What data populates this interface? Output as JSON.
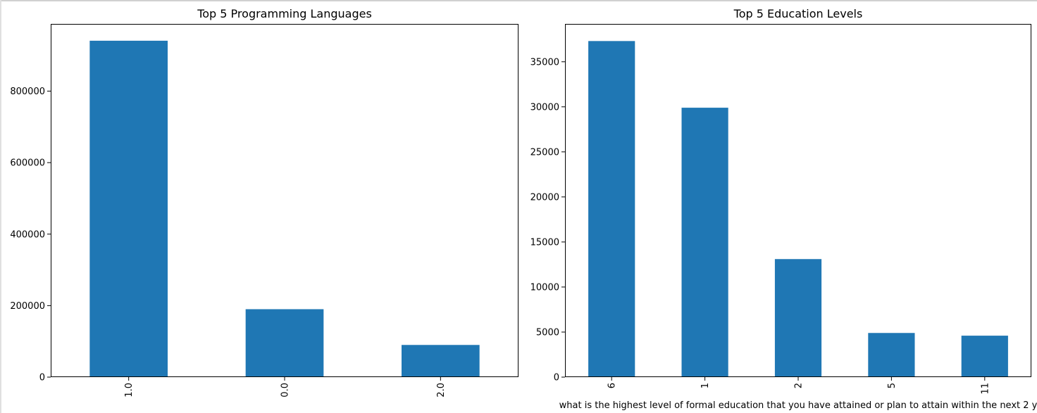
{
  "colors": {
    "bar": "#1f77b4",
    "axis": "#000000",
    "background": "#ffffff"
  },
  "chart_data": [
    {
      "type": "bar",
      "title": "Top 5 Programming Languages",
      "xlabel": "",
      "ylabel": "",
      "categories": [
        "1.0",
        "0.0",
        "2.0"
      ],
      "values": [
        941000,
        190000,
        90000
      ],
      "ylim": [
        0,
        988000
      ],
      "yticks": [
        0,
        200000,
        400000,
        600000,
        800000
      ],
      "ytick_labels": [
        "0",
        "200000",
        "400000",
        "600000",
        "800000"
      ],
      "xtick_rotation": "vertical",
      "grid": false,
      "legend": "none"
    },
    {
      "type": "bar",
      "title": "Top 5 Education Levels",
      "xlabel": "what is the highest level of formal education that you have attained or plan to attain within the next 2 y",
      "ylabel": "",
      "categories": [
        "6",
        "1",
        "2",
        "5",
        "11"
      ],
      "values": [
        37300,
        29900,
        13100,
        4900,
        4600
      ],
      "ylim": [
        0,
        39200
      ],
      "yticks": [
        0,
        5000,
        10000,
        15000,
        20000,
        25000,
        30000,
        35000
      ],
      "ytick_labels": [
        "0",
        "5000",
        "10000",
        "15000",
        "20000",
        "25000",
        "30000",
        "35000"
      ],
      "xtick_rotation": "vertical",
      "grid": false,
      "legend": "none"
    }
  ]
}
